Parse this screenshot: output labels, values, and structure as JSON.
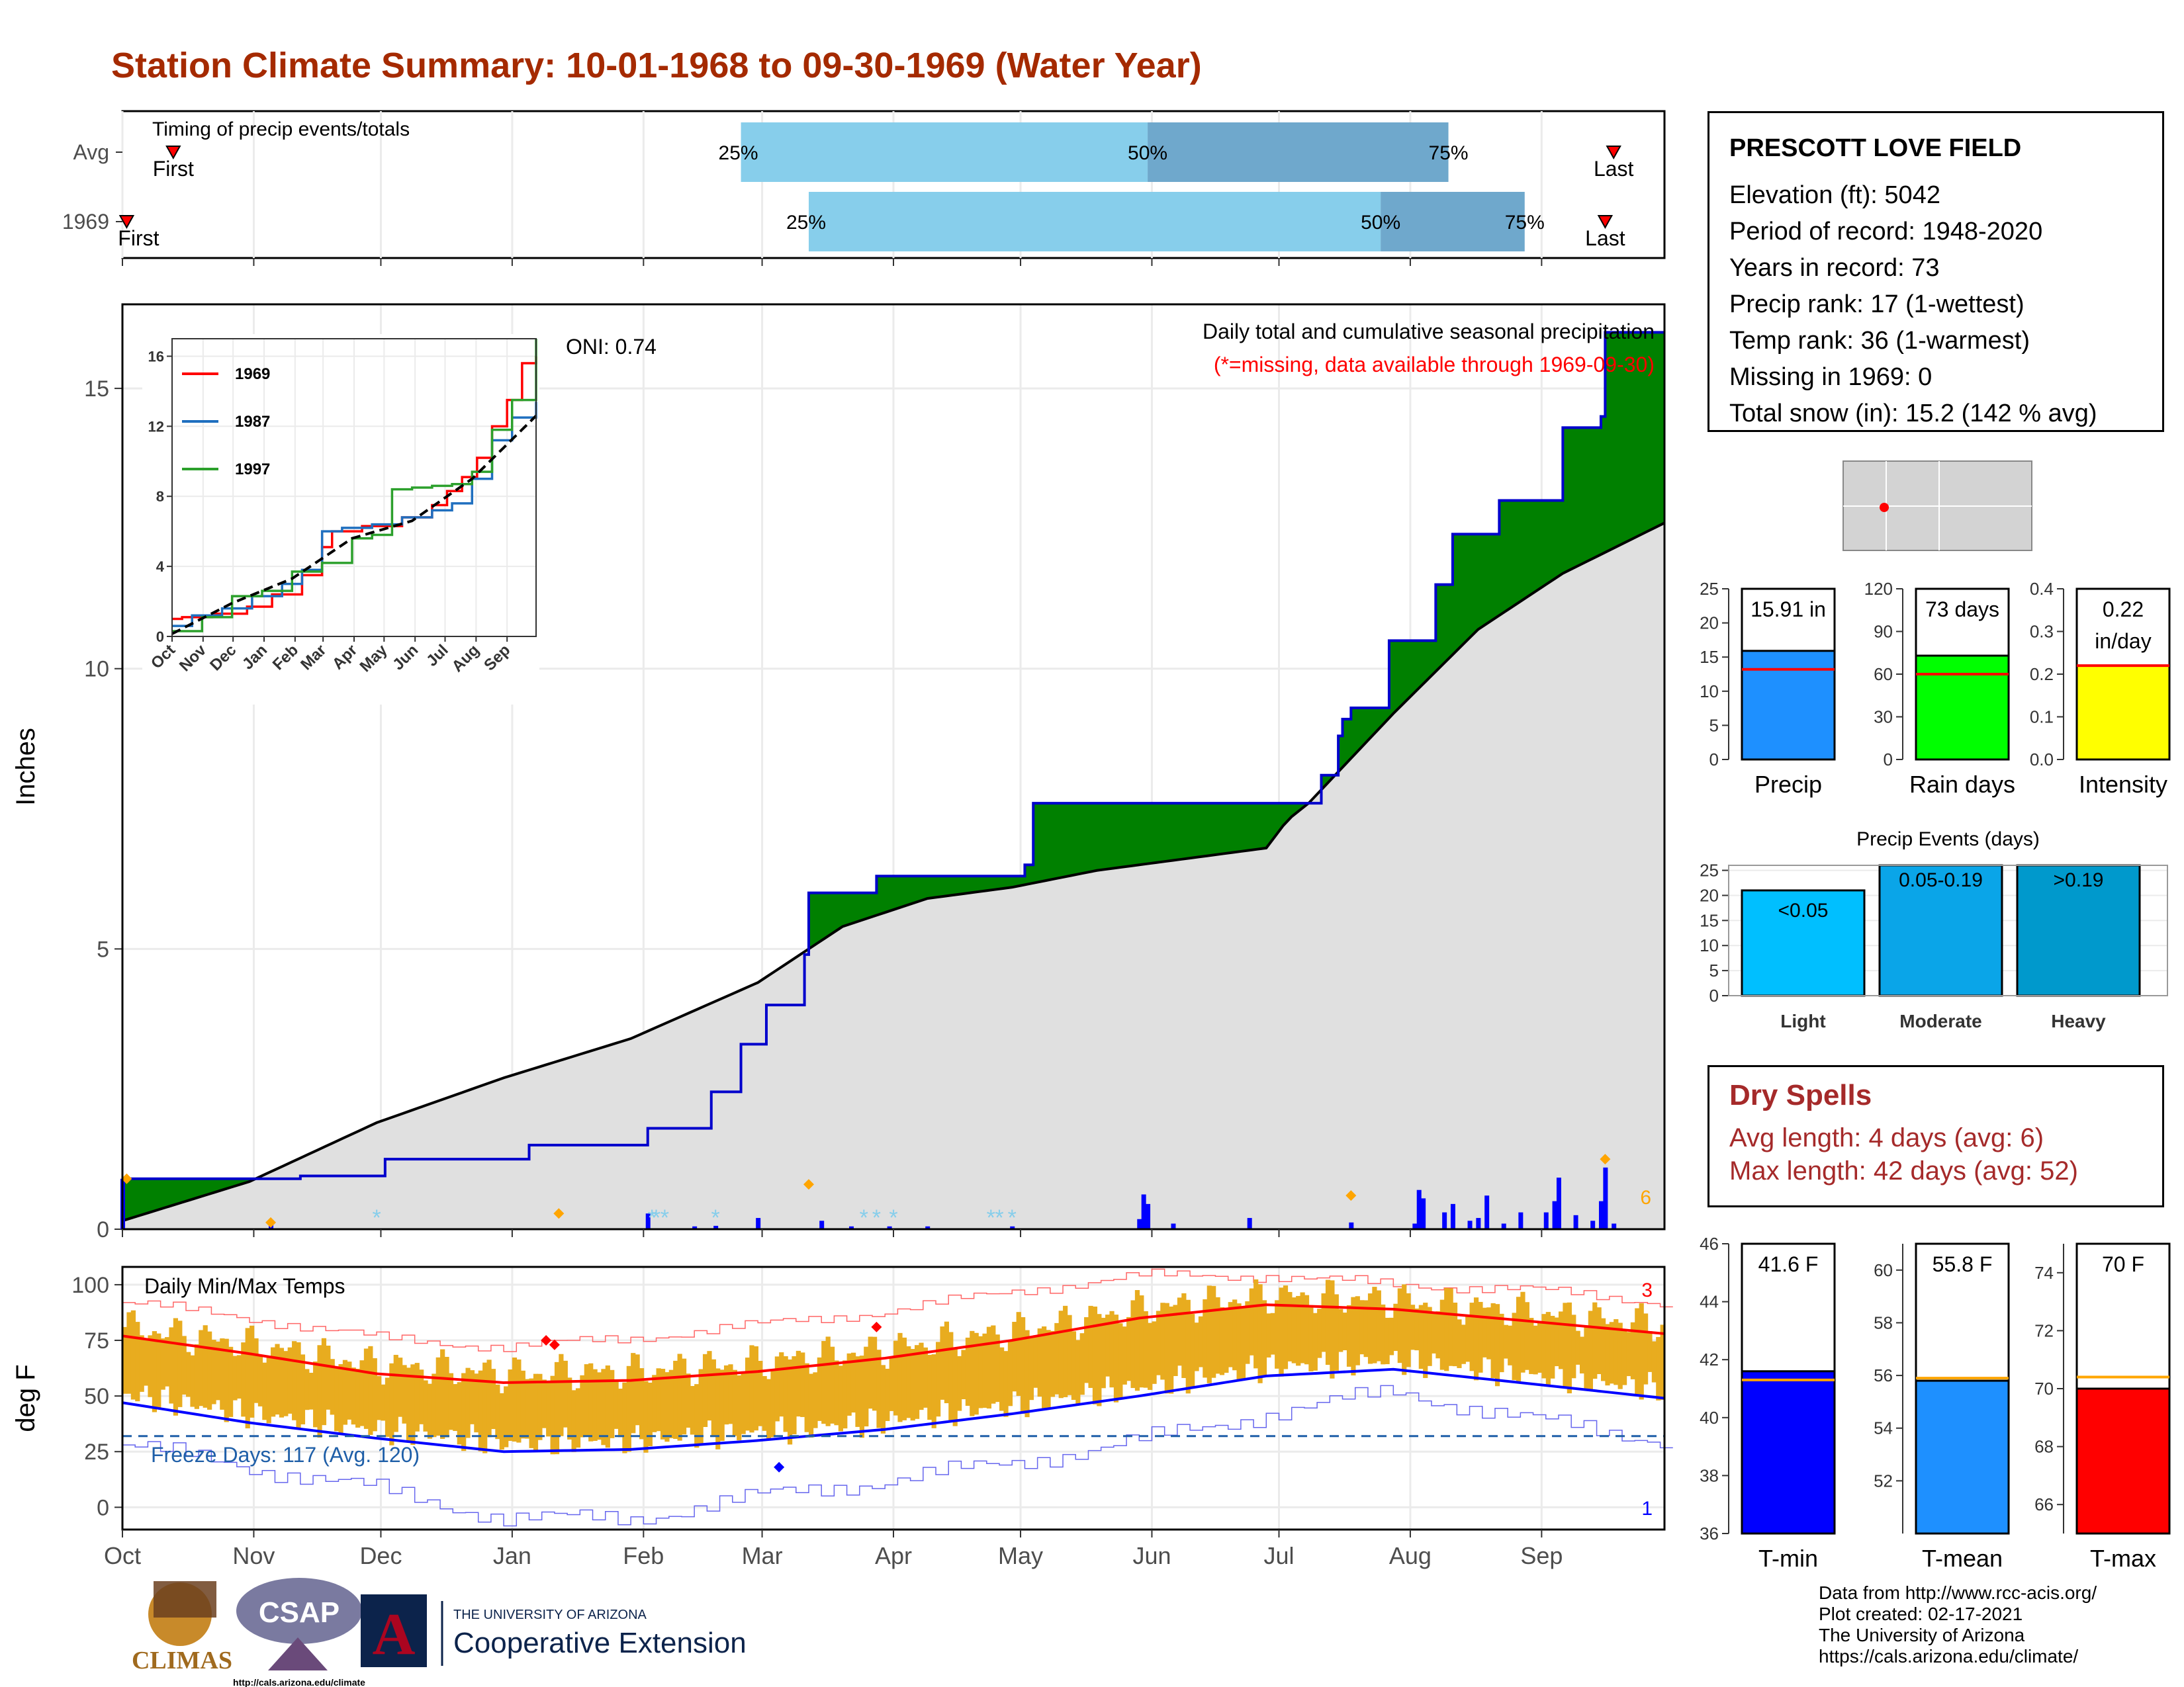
{
  "title": "Station Climate Summary: 10-01-1968 to 09-30-1969 (Water Year)",
  "colors": {
    "title": "#a52a00",
    "precip_up": "#008000",
    "precip_down": "#7b4f00",
    "normal_fill": "#e0e0e0",
    "daily_bar": "#0000ff",
    "tmax_line": "#ff0000",
    "tmin_line": "#0000ff",
    "temp_range": "#e8ac1f",
    "timing_light": "#87ceeb",
    "timing_dark": "#6fa8cc"
  },
  "timing": {
    "label": "Timing of precip events/totals",
    "rows": [
      {
        "name": "Avg",
        "first_label": "First",
        "last_label": "Last",
        "p25": "25%",
        "p50": "50%",
        "p75": "75%",
        "first_doy": 12,
        "last_doy": 352,
        "q25_doy": 146,
        "q50_doy": 242,
        "q75_doy": 313
      },
      {
        "name": "1969",
        "first_label": "First",
        "last_label": "Last",
        "p25": "25%",
        "p50": "50%",
        "p75": "75%",
        "first_doy": 1,
        "last_doy": 350,
        "q25_doy": 162,
        "q50_doy": 297,
        "q75_doy": 331
      }
    ]
  },
  "main_chart": {
    "ylabel": "Inches",
    "yticks": [
      "0",
      "5",
      "10",
      "15"
    ],
    "oni": "ONI: 0.74",
    "subtitle": "Daily total and cumulative seasonal precipitation",
    "missing_note": "(*=missing, data available through 1969-09-30)",
    "count_label": "6",
    "months": [
      "Oct",
      "Nov",
      "Dec",
      "Jan",
      "Feb",
      "Mar",
      "Apr",
      "May",
      "Jun",
      "Jul",
      "Aug",
      "Sep"
    ]
  },
  "chart_data": [
    {
      "type": "line",
      "title": "Daily total and cumulative seasonal precipitation",
      "ylabel": "Inches",
      "ylim": [
        0,
        16.5
      ],
      "x_unit": "day of water year",
      "series": [
        {
          "name": "1969",
          "x": [
            0,
            1,
            34,
            42,
            62,
            96,
            124,
            139,
            146,
            152,
            161,
            162,
            178,
            195,
            210,
            213,
            215,
            246,
            253,
            275,
            280,
            283,
            287,
            288,
            290,
            299,
            310,
            314,
            325,
            340,
            349,
            350,
            364
          ],
          "values": [
            0.9,
            0.9,
            0.9,
            0.95,
            1.25,
            1.5,
            1.8,
            2.45,
            3.3,
            4.0,
            4.9,
            6.0,
            6.3,
            6.3,
            6.3,
            6.5,
            7.6,
            7.6,
            7.6,
            7.6,
            7.6,
            8.1,
            8.8,
            9.1,
            9.3,
            10.5,
            11.5,
            12.4,
            13.0,
            14.3,
            14.5,
            16.0,
            16.0
          ]
        },
        {
          "name": "Average",
          "x": [
            0,
            30,
            60,
            90,
            120,
            150,
            160,
            170,
            190,
            210,
            230,
            250,
            270,
            275,
            280,
            290,
            300,
            320,
            340,
            364
          ],
          "values": [
            0.15,
            0.85,
            1.9,
            2.7,
            3.4,
            4.4,
            4.9,
            5.4,
            5.9,
            6.1,
            6.4,
            6.6,
            6.8,
            7.3,
            7.6,
            8.4,
            9.2,
            10.7,
            11.7,
            12.6
          ]
        }
      ],
      "daily_precip": [
        {
          "x": 0,
          "v": 0.9
        },
        {
          "x": 35,
          "v": 0.1
        },
        {
          "x": 124,
          "v": 0.28
        },
        {
          "x": 135,
          "v": 0.05
        },
        {
          "x": 140,
          "v": 0.06
        },
        {
          "x": 150,
          "v": 0.2
        },
        {
          "x": 165,
          "v": 0.15
        },
        {
          "x": 172,
          "v": 0.05
        },
        {
          "x": 181,
          "v": 0.05
        },
        {
          "x": 190,
          "v": 0.05
        },
        {
          "x": 210,
          "v": 0.05
        },
        {
          "x": 240,
          "v": 0.18
        },
        {
          "x": 241,
          "v": 0.62
        },
        {
          "x": 242,
          "v": 0.45
        },
        {
          "x": 248,
          "v": 0.1
        },
        {
          "x": 266,
          "v": 0.2
        },
        {
          "x": 290,
          "v": 0.12
        },
        {
          "x": 305,
          "v": 0.1
        },
        {
          "x": 306,
          "v": 0.7
        },
        {
          "x": 307,
          "v": 0.55
        },
        {
          "x": 312,
          "v": 0.3
        },
        {
          "x": 314,
          "v": 0.45
        },
        {
          "x": 318,
          "v": 0.15
        },
        {
          "x": 320,
          "v": 0.2
        },
        {
          "x": 322,
          "v": 0.6
        },
        {
          "x": 326,
          "v": 0.1
        },
        {
          "x": 330,
          "v": 0.3
        },
        {
          "x": 336,
          "v": 0.3
        },
        {
          "x": 338,
          "v": 0.5
        },
        {
          "x": 339,
          "v": 0.92
        },
        {
          "x": 343,
          "v": 0.25
        },
        {
          "x": 347,
          "v": 0.15
        },
        {
          "x": 349,
          "v": 0.5
        },
        {
          "x": 350,
          "v": 1.1
        },
        {
          "x": 352,
          "v": 0.1
        }
      ]
    },
    {
      "type": "line",
      "title": "",
      "yticks": [
        0,
        4,
        8,
        12,
        16
      ],
      "months": [
        "Oct",
        "Nov",
        "Dec",
        "Jan",
        "Feb",
        "Mar",
        "Apr",
        "May",
        "Jun",
        "Jul",
        "Aug",
        "Sep"
      ],
      "series": [
        {
          "name": "1969",
          "x": [
            0,
            10,
            40,
            75,
            100,
            130,
            150,
            160,
            190,
            230,
            260,
            275,
            290,
            305,
            320,
            335,
            350,
            364
          ],
          "values": [
            1.0,
            1.1,
            1.3,
            1.7,
            2.4,
            3.5,
            5.1,
            6.0,
            6.3,
            6.8,
            7.5,
            8.3,
            9.1,
            10.2,
            12.0,
            13.5,
            15.6,
            16.0
          ]
        },
        {
          "name": "1987",
          "x": [
            0,
            20,
            50,
            80,
            110,
            130,
            150,
            170,
            200,
            230,
            260,
            280,
            300,
            320,
            340,
            364
          ],
          "values": [
            0.6,
            1.2,
            1.6,
            2.3,
            3.0,
            3.8,
            6.0,
            6.2,
            6.4,
            6.8,
            7.2,
            7.6,
            9.0,
            11.2,
            12.5,
            13.4
          ]
        },
        {
          "name": "1997",
          "x": [
            0,
            30,
            60,
            90,
            120,
            150,
            180,
            200,
            220,
            240,
            260,
            280,
            300,
            320,
            340,
            364
          ],
          "values": [
            0.3,
            1.1,
            2.3,
            2.6,
            3.7,
            4.2,
            5.6,
            5.8,
            8.4,
            8.5,
            8.6,
            8.7,
            9.4,
            11.8,
            13.5,
            17.0
          ]
        },
        {
          "name": "Average",
          "x": [
            0,
            60,
            120,
            180,
            240,
            300,
            364
          ],
          "values": [
            0.15,
            1.9,
            3.3,
            5.6,
            6.6,
            9.0,
            12.6
          ]
        }
      ]
    },
    {
      "type": "line",
      "title": "Daily Min/Max Temps",
      "ylabel": "deg F",
      "ylim": [
        -10,
        108
      ],
      "freeze_label": "Freeze Days: 117 (Avg. 120)",
      "freeze_line": 32,
      "record_high_count": "3",
      "record_low_count": "1",
      "yticks": [
        0,
        25,
        50,
        75,
        100
      ],
      "series": [
        {
          "name": "avg_max",
          "x": [
            0,
            30,
            60,
            90,
            120,
            150,
            180,
            210,
            240,
            270,
            300,
            330,
            364
          ],
          "values": [
            77,
            69,
            60,
            56,
            57,
            61,
            67,
            75,
            85,
            91,
            89,
            84,
            78
          ]
        },
        {
          "name": "avg_min",
          "x": [
            0,
            30,
            60,
            90,
            120,
            150,
            180,
            210,
            240,
            270,
            300,
            330,
            364
          ],
          "values": [
            47,
            38,
            31,
            25,
            26,
            30,
            35,
            42,
            50,
            59,
            62,
            56,
            49
          ]
        },
        {
          "name": "record_max",
          "x": [
            0,
            30,
            60,
            90,
            120,
            150,
            180,
            210,
            240,
            270,
            300,
            330,
            364
          ],
          "values": [
            92,
            85,
            76,
            72,
            76,
            82,
            88,
            97,
            104,
            104,
            100,
            98,
            92
          ]
        },
        {
          "name": "record_min",
          "x": [
            0,
            30,
            60,
            90,
            120,
            150,
            180,
            210,
            240,
            270,
            300,
            330,
            364
          ],
          "values": [
            28,
            18,
            8,
            -5,
            -5,
            5,
            12,
            20,
            30,
            42,
            52,
            40,
            30
          ]
        }
      ]
    },
    {
      "type": "bar",
      "categories": [
        "Precip"
      ],
      "values": [
        15.91
      ],
      "avg": 13.2,
      "ylim": [
        0,
        25
      ],
      "label": "15.91 in"
    },
    {
      "type": "bar",
      "categories": [
        "Rain days"
      ],
      "values": [
        73
      ],
      "avg": 60,
      "ylim": [
        0,
        120
      ],
      "label": "73 days"
    },
    {
      "type": "bar",
      "categories": [
        "Intensity"
      ],
      "values": [
        0.22
      ],
      "avg": 0.22,
      "ylim": [
        0,
        0.4
      ],
      "label": "0.22 in/day"
    },
    {
      "type": "bar",
      "title": "Precip Events (days)",
      "categories": [
        "Light",
        "Moderate",
        "Heavy"
      ],
      "values": [
        21,
        26,
        26
      ],
      "labels": [
        "<0.05",
        "0.05-0.19",
        ">0.19"
      ],
      "ylim": [
        0,
        26
      ]
    },
    {
      "type": "bar",
      "categories": [
        "T-min"
      ],
      "values": [
        41.6
      ],
      "avg": 41.3,
      "ylim": [
        36,
        46
      ],
      "label": "41.6 F"
    },
    {
      "type": "bar",
      "categories": [
        "T-mean"
      ],
      "values": [
        55.8
      ],
      "avg": 55.9,
      "ylim": [
        50,
        61
      ],
      "label": "55.8 F"
    },
    {
      "type": "bar",
      "categories": [
        "T-max"
      ],
      "values": [
        70
      ],
      "avg": 70.4,
      "ylim": [
        65,
        75
      ],
      "label": "70 F"
    }
  ],
  "station": {
    "name": "PRESCOTT LOVE FIELD",
    "lines": [
      "Elevation (ft): 5042",
      "Period of record: 1948-2020",
      "Years in record: 73",
      "Precip rank: 17 (1-wettest)",
      "Temp rank: 36 (1-warmest)",
      "Missing in 1969: 0",
      "Total snow (in): 15.2 (142 % avg)"
    ]
  },
  "dry_spells": {
    "title": "Dry Spells",
    "avg": "Avg length: 4 days (avg: 6)",
    "max": "Max length: 42 days (avg: 52)"
  },
  "credits": [
    "Data from http://www.rcc-acis.org/",
    "Plot created: 02-17-2021",
    "The University of Arizona",
    "https://cals.arizona.edu/climate/"
  ],
  "logos": {
    "climas": "CLIMAS",
    "csap": "CSAP",
    "csap_url": "http://cals.arizona.edu/climate",
    "ua_small": "THE UNIVERSITY OF ARIZONA",
    "ua_big": "Cooperative Extension"
  }
}
